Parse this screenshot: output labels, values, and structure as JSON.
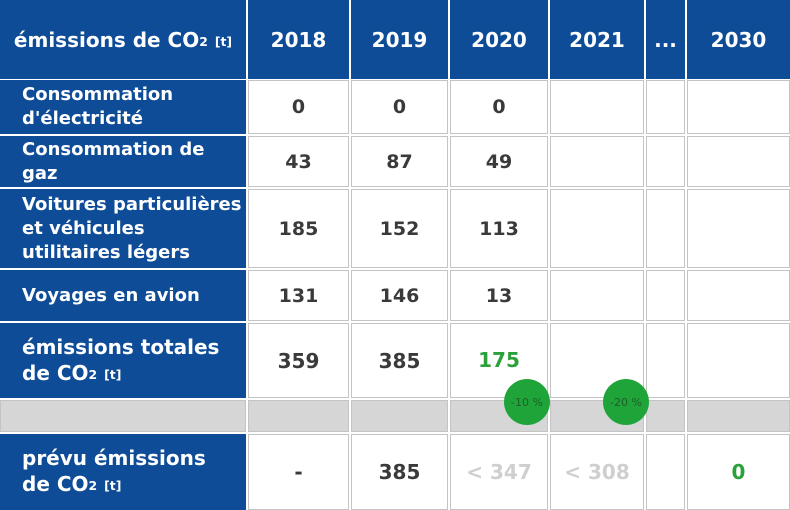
{
  "header": {
    "label": "émissions de CO",
    "label_sub": "2",
    "label_unit": "[t]",
    "years": [
      "2018",
      "2019",
      "2020",
      "2021",
      "...",
      "2030"
    ]
  },
  "rows": [
    {
      "label": "Consommation d'électricité",
      "values": [
        "0",
        "0",
        "0",
        "",
        "",
        ""
      ]
    },
    {
      "label": "Consommation de gaz",
      "values": [
        "43",
        "87",
        "49",
        "",
        "",
        ""
      ]
    },
    {
      "label": "Voitures particulières et véhicules utilitaires légers",
      "values": [
        "185",
        "152",
        "113",
        "",
        "",
        ""
      ]
    },
    {
      "label": "Voyages en avion",
      "values": [
        "131",
        "146",
        "13",
        "",
        "",
        ""
      ]
    }
  ],
  "total": {
    "label_line1": "émissions totales",
    "label_line2": "de CO",
    "label_sub": "2",
    "label_unit": "[t]",
    "values": [
      "359",
      "385",
      "175",
      "",
      "",
      ""
    ]
  },
  "badges": [
    "-10 %",
    "-20 %"
  ],
  "planned": {
    "label_line1": "prévu émissions",
    "label_line2": "de CO",
    "label_sub": "2",
    "label_unit": "[t]",
    "values": [
      "-",
      "385",
      "< 347",
      "< 308",
      "",
      "0"
    ]
  },
  "colors": {
    "header_blue": "#0f4c97",
    "highlight_green": "#2aa13a",
    "badge_green": "#1fa43a",
    "target_gray": "#cfcfcf"
  }
}
